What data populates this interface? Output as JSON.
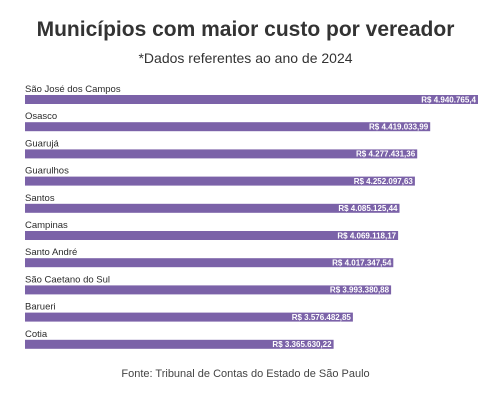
{
  "chart_data": {
    "type": "bar",
    "orientation": "horizontal",
    "title": "Municípios com maior custo por vereador",
    "subtitle": "*Dados referentes ao ano de 2024",
    "source": "Fonte: Tribunal de Contas do Estado de São Paulo",
    "bar_color": "#7b62a8",
    "label_color": "#ffffff",
    "categories": [
      "São José dos Campos",
      "Osasco",
      "Guarujá",
      "Guarulhos",
      "Santos",
      "Campinas",
      "Santo André",
      "São Caetano do Sul",
      "Barueri",
      "Cotia"
    ],
    "values": [
      4940765.4,
      4419033.99,
      4277431.36,
      4252097.63,
      4085125.44,
      4069118.17,
      4017347.54,
      3993380.88,
      3576482.85,
      3365630.22
    ],
    "value_labels": [
      "R$ 4.940.765,4",
      "R$ 4.419.033,99",
      "R$ 4.277.431,36",
      "R$ 4.252.097,63",
      "R$ 4.085.125,44",
      "R$ 4.069.118,17",
      "R$ 4.017.347,54",
      "R$ 3.993.380,88",
      "R$ 3.576.482,85",
      "R$ 3.365.630,22"
    ],
    "xlim": [
      0,
      4940765.4
    ],
    "grid": false,
    "legend": "none"
  }
}
